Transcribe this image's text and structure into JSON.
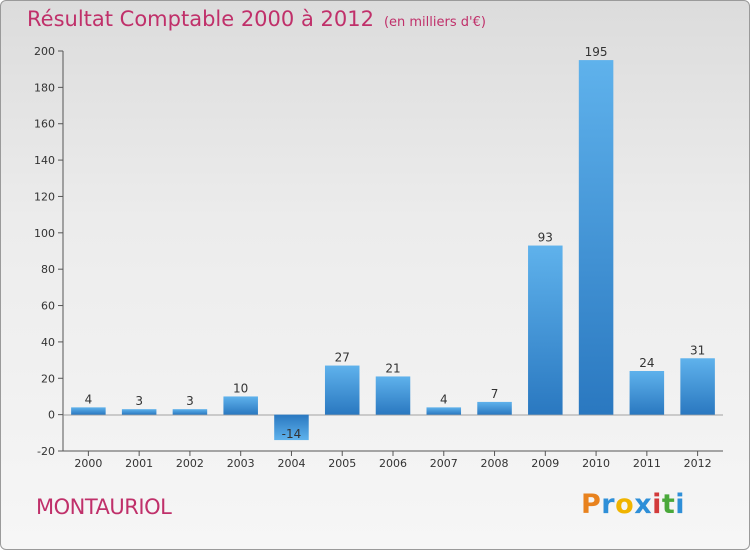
{
  "header": {
    "title": "Résultat Comptable 2000 à 2012",
    "subtitle": "(en milliers d'€)"
  },
  "footer": {
    "place": "MONTAURIOL",
    "logo_chars": [
      "P",
      "r",
      "o",
      "x",
      "i",
      "t",
      "i"
    ],
    "logo_colors": [
      "#e8821e",
      "#2e8fd8",
      "#f0b400",
      "#2e8fd8",
      "#d23a3a",
      "#4aa83a",
      "#2e8fd8"
    ]
  },
  "chart_data": {
    "type": "bar",
    "title": "Résultat Comptable 2000 à 2012",
    "subtitle": "(en milliers d'€)",
    "categories": [
      "2000",
      "2001",
      "2002",
      "2003",
      "2004",
      "2005",
      "2006",
      "2007",
      "2008",
      "2009",
      "2010",
      "2011",
      "2012"
    ],
    "values": [
      4,
      3,
      3,
      10,
      -14,
      27,
      21,
      4,
      7,
      93,
      195,
      24,
      31
    ],
    "ylim": [
      -20,
      200
    ],
    "yticks": [
      -20,
      0,
      20,
      40,
      60,
      80,
      100,
      120,
      140,
      160,
      180,
      200
    ],
    "xlabel": "",
    "ylabel": "",
    "grid": false,
    "bar_color": "#3b8fd4"
  }
}
